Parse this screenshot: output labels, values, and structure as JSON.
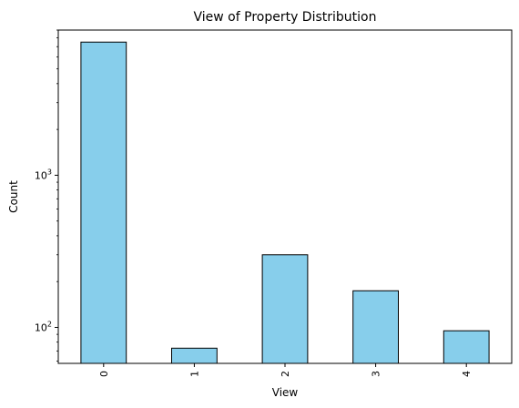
{
  "chart_data": {
    "type": "bar",
    "title": "View of Property Distribution",
    "xlabel": "View",
    "ylabel": "Count",
    "yscale": "log",
    "ylim": [
      58,
      9000
    ],
    "categories": [
      "0",
      "1",
      "2",
      "3",
      "4"
    ],
    "values": [
      7500,
      73,
      300,
      174,
      95
    ],
    "ytick_labels": [
      {
        "value": 100,
        "base": "10",
        "exp": "2"
      },
      {
        "value": 1000,
        "base": "10",
        "exp": "3"
      }
    ],
    "grid": false,
    "legend": "none",
    "colors": {
      "bar_fill": "#87CEEB",
      "bar_edge": "#000000",
      "axis": "#000000"
    }
  }
}
